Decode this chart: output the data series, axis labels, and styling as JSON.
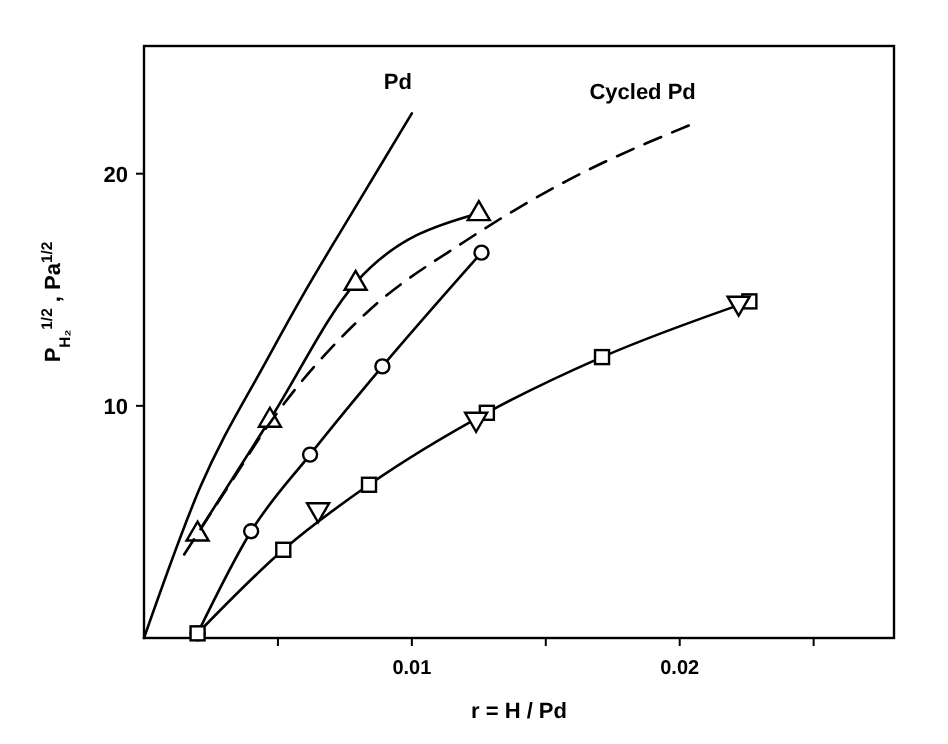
{
  "chart_data": {
    "type": "line",
    "xlabel": "r = H / Pd",
    "ylabel": "P$_{H₂}$$^{1/2}$ , Pa$^{1/2}$",
    "xlim": [
      0,
      0.028
    ],
    "ylim": [
      0,
      25.5
    ],
    "xticks": [
      {
        "value": 0.005,
        "label": null
      },
      0.01,
      {
        "value": 0.015,
        "label": null
      },
      0.02,
      {
        "value": 0.025,
        "label": null
      }
    ],
    "yticks": [
      10,
      20
    ],
    "grid": false,
    "series": [
      {
        "name": "Pd",
        "color": "#000000",
        "marker": "none",
        "line_style": "solid",
        "x": [
          0,
          0.0021,
          0.0046,
          0.0061,
          0.0076,
          0.0088,
          0.01
        ],
        "values": [
          0,
          6.5,
          12.0,
          15.1,
          18.0,
          20.3,
          22.6
        ]
      },
      {
        "color": "#000000",
        "marker": "triangle",
        "line_style": "solid",
        "x": [
          0.002,
          0.0047,
          0.0079,
          0.0125
        ],
        "values": [
          4.5,
          9.4,
          15.3,
          18.3
        ]
      },
      {
        "name": "Cycled Pd",
        "color": "#000000",
        "marker": "none",
        "line_style": "dashed",
        "x": [
          0.0015,
          0.0033,
          0.0046,
          0.0083,
          0.012,
          0.0158,
          0.0206
        ],
        "values": [
          3.6,
          6.8,
          9.1,
          14.0,
          17.1,
          19.7,
          22.2
        ]
      },
      {
        "color": "#000000",
        "marker": "circle",
        "line_style": "solid",
        "x": [
          0.002,
          0.004,
          0.0062,
          0.0089,
          0.0126
        ],
        "values": [
          0.2,
          4.6,
          7.9,
          11.7,
          16.6
        ]
      },
      {
        "color": "#000000",
        "marker": "square",
        "line_style": "solid",
        "x": [
          0.002,
          0.0052,
          0.0084,
          0.0128,
          0.0171,
          0.0226
        ],
        "values": [
          0.2,
          3.8,
          6.6,
          9.7,
          12.1,
          14.5
        ]
      },
      {
        "type": "scatter",
        "color": "#000000",
        "marker": "triangle-down",
        "x": [
          0.0065,
          0.0124,
          0.0222
        ],
        "values": [
          5.5,
          9.4,
          14.4
        ]
      }
    ]
  }
}
